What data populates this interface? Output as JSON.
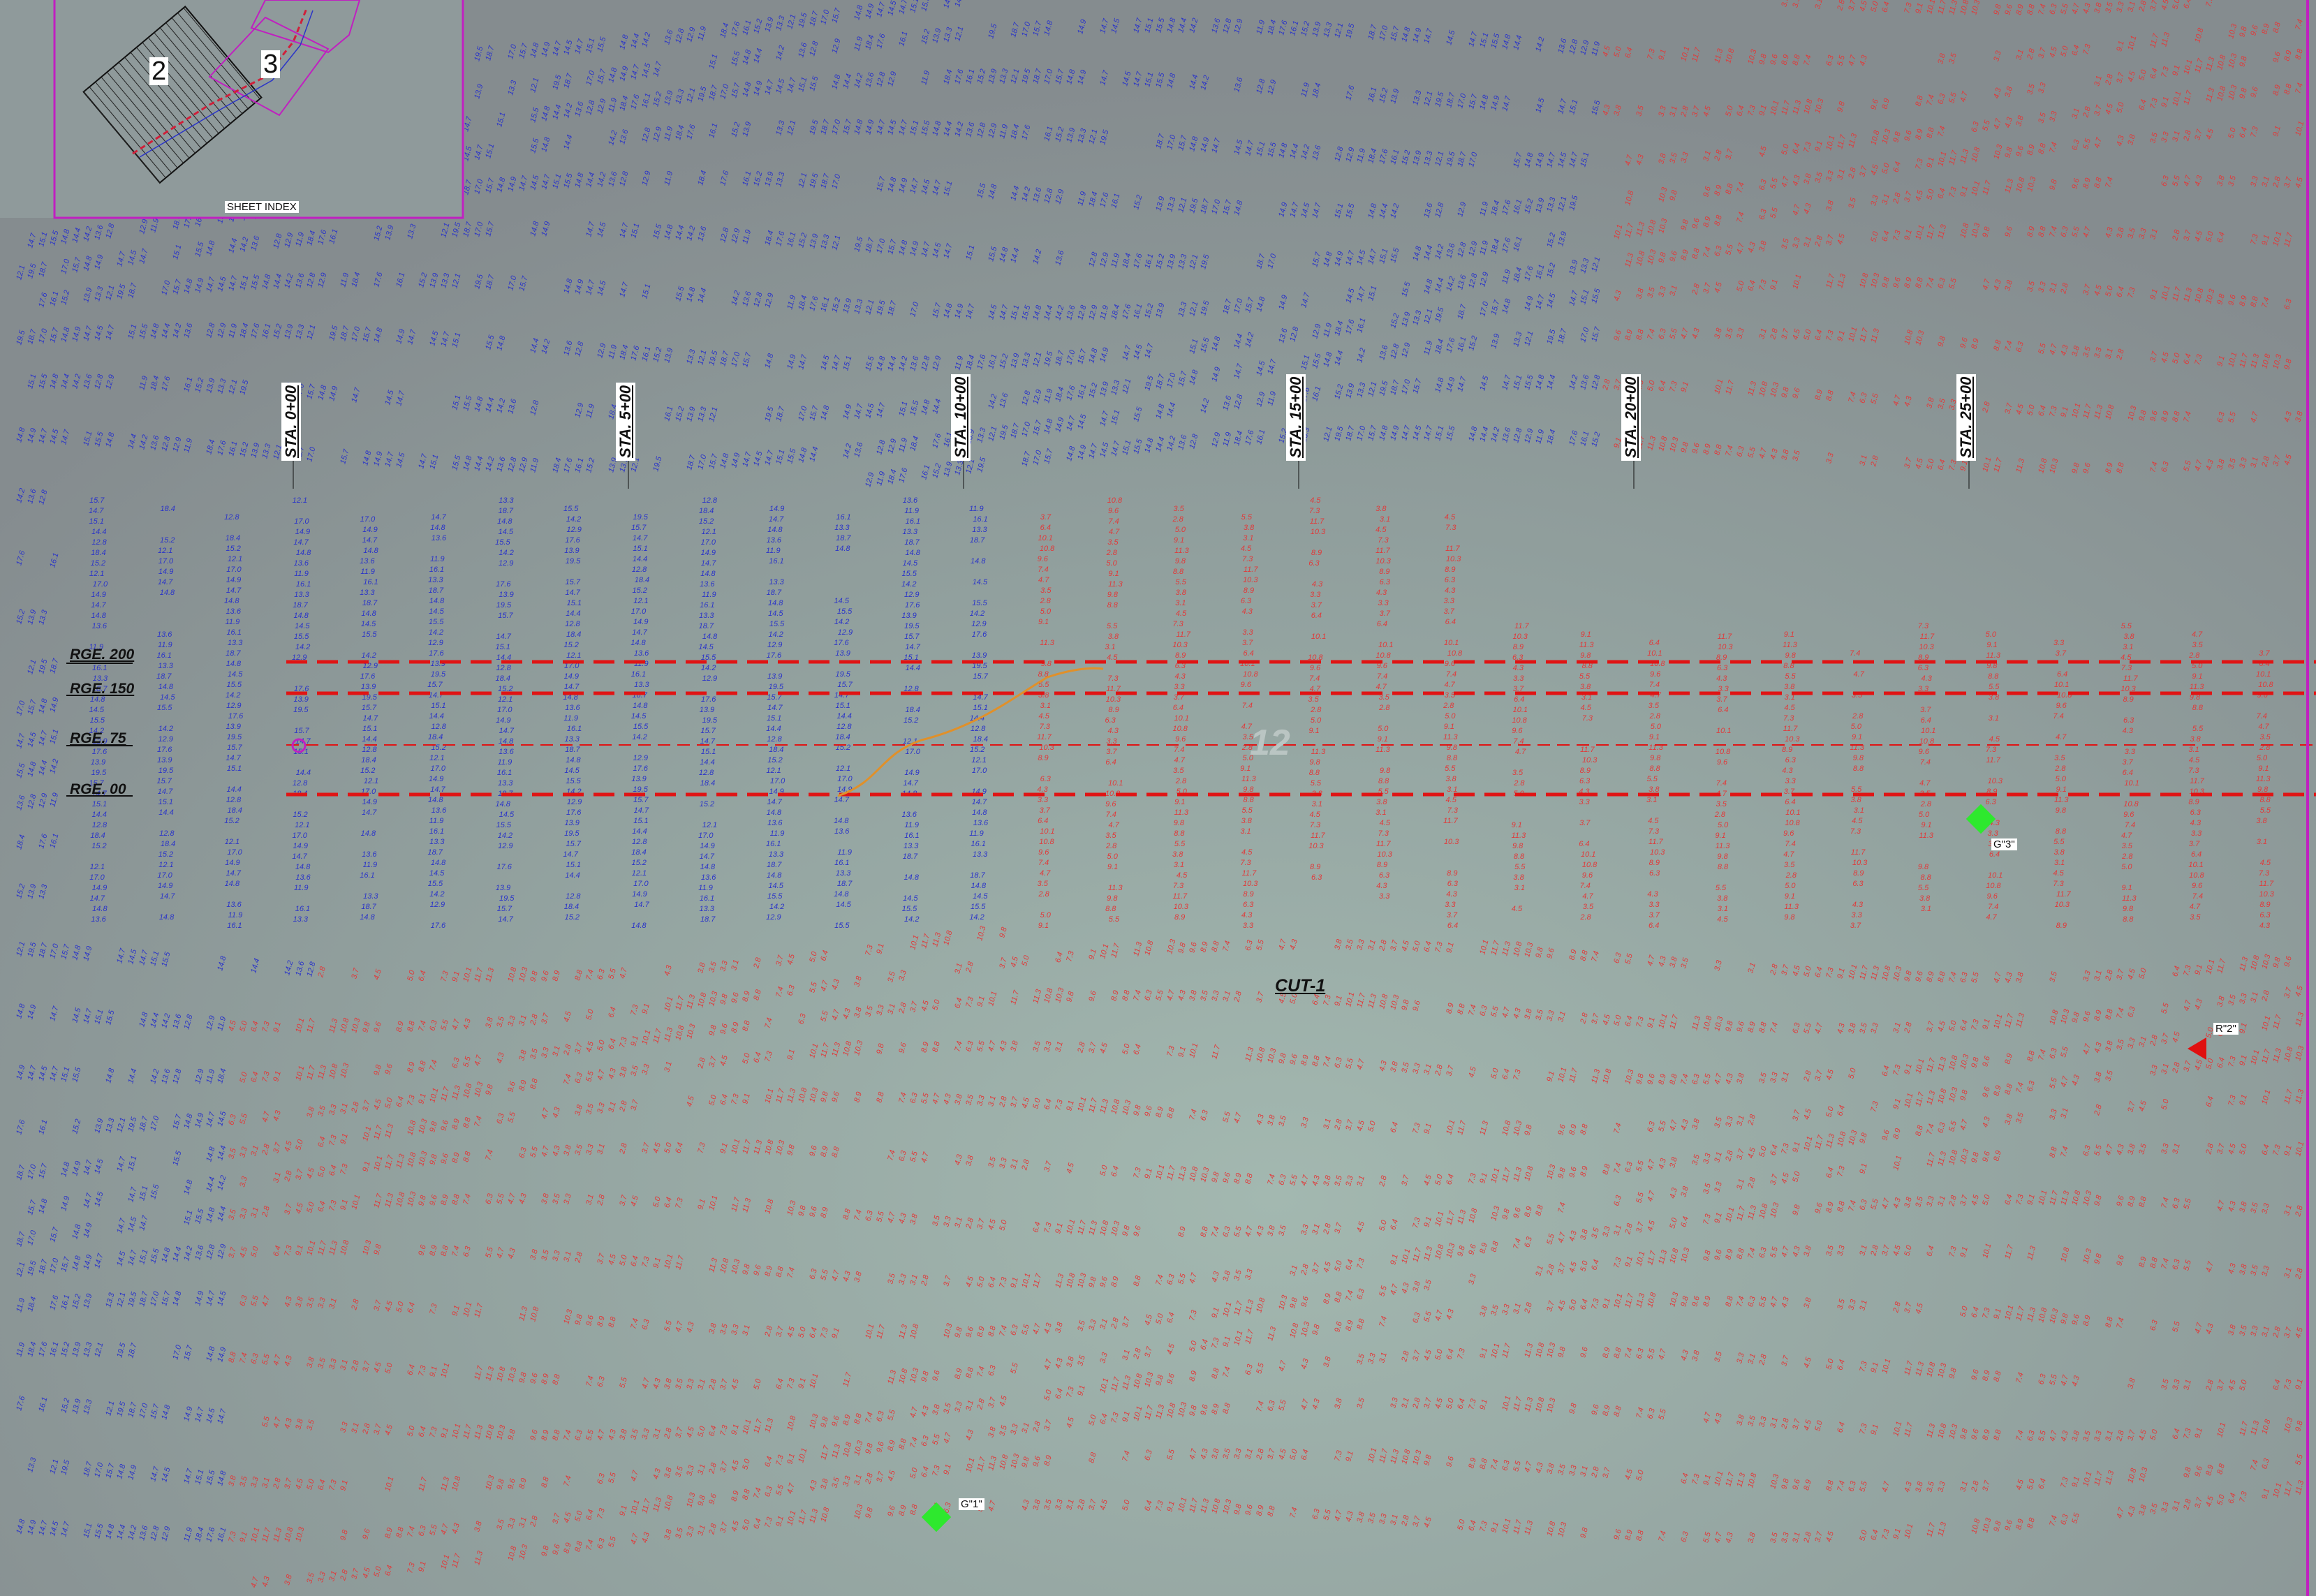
{
  "sheet_index": {
    "title": "SHEET INDEX",
    "sheets": [
      "2",
      "3"
    ]
  },
  "stations": [
    "STA. 0+00",
    "STA. 5+00",
    "STA. 10+00",
    "STA. 15+00",
    "STA. 20+00",
    "STA. 25+00"
  ],
  "ranges": [
    "RGE. 200",
    "RGE. 150",
    "RGE. 75",
    "RGE. 00"
  ],
  "cut_label": "CUT-1",
  "section_mark": "12",
  "markers": [
    {
      "name": "G-3",
      "label": "G\"3\"",
      "kind": "diamond",
      "color": "#2ee82e"
    },
    {
      "name": "G-1",
      "label": "G\"1\"",
      "kind": "diamond",
      "color": "#2ee82e"
    },
    {
      "name": "R-2",
      "label": "R\"2\"",
      "kind": "triangle",
      "color": "#e01010"
    }
  ],
  "colors": {
    "deep_soundings": "#2b35c8",
    "shallow_soundings": "#e03a3a",
    "channel_lines": "#e01414",
    "sheet_border": "#c020c0",
    "centerline_trace": "#e0902a",
    "water": "#8c9a98"
  },
  "sounding_samples": {
    "deep": [
      "19.5",
      "18.7",
      "17.0",
      "15.7",
      "14.8",
      "14.9",
      "14.7",
      "14.5",
      "14.7",
      "15.1",
      "15.5",
      "14.8",
      "14.4",
      "14.2",
      "13.6",
      "12.8",
      "12.9",
      "11.9",
      "18.4",
      "17.6",
      "16.1",
      "15.2",
      "13.9",
      "13.3",
      "12.1"
    ],
    "shallow": [
      "11.3",
      "10.8",
      "10.3",
      "9.8",
      "9.6",
      "8.9",
      "8.8",
      "7.4",
      "6.3",
      "5.5",
      "4.7",
      "4.3",
      "3.8",
      "3.5",
      "3.3",
      "3.1",
      "2.8",
      "3.7",
      "4.5",
      "5.0",
      "6.4",
      "7.3",
      "9.1",
      "10.1",
      "11.7"
    ]
  }
}
